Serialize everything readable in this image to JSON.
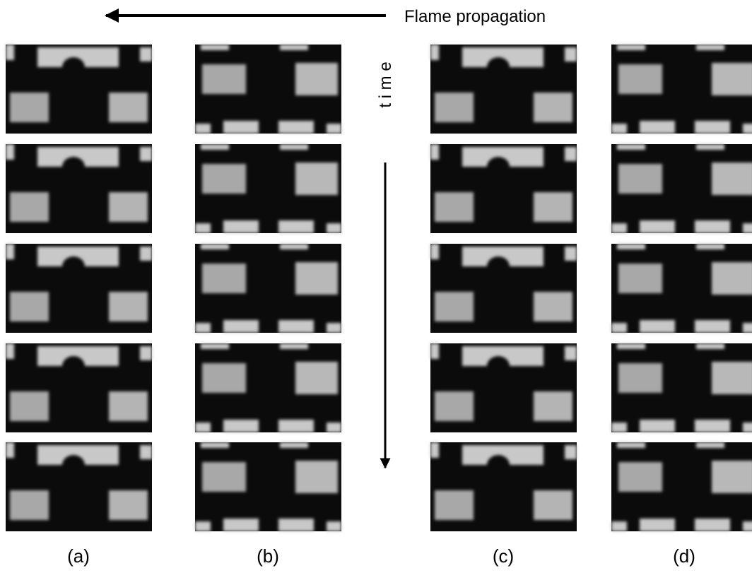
{
  "figure": {
    "caption": "Flame propagation",
    "time_label": "t i m e",
    "column_labels": [
      "(a)",
      "(b)",
      "(c)",
      "(d)"
    ]
  }
}
